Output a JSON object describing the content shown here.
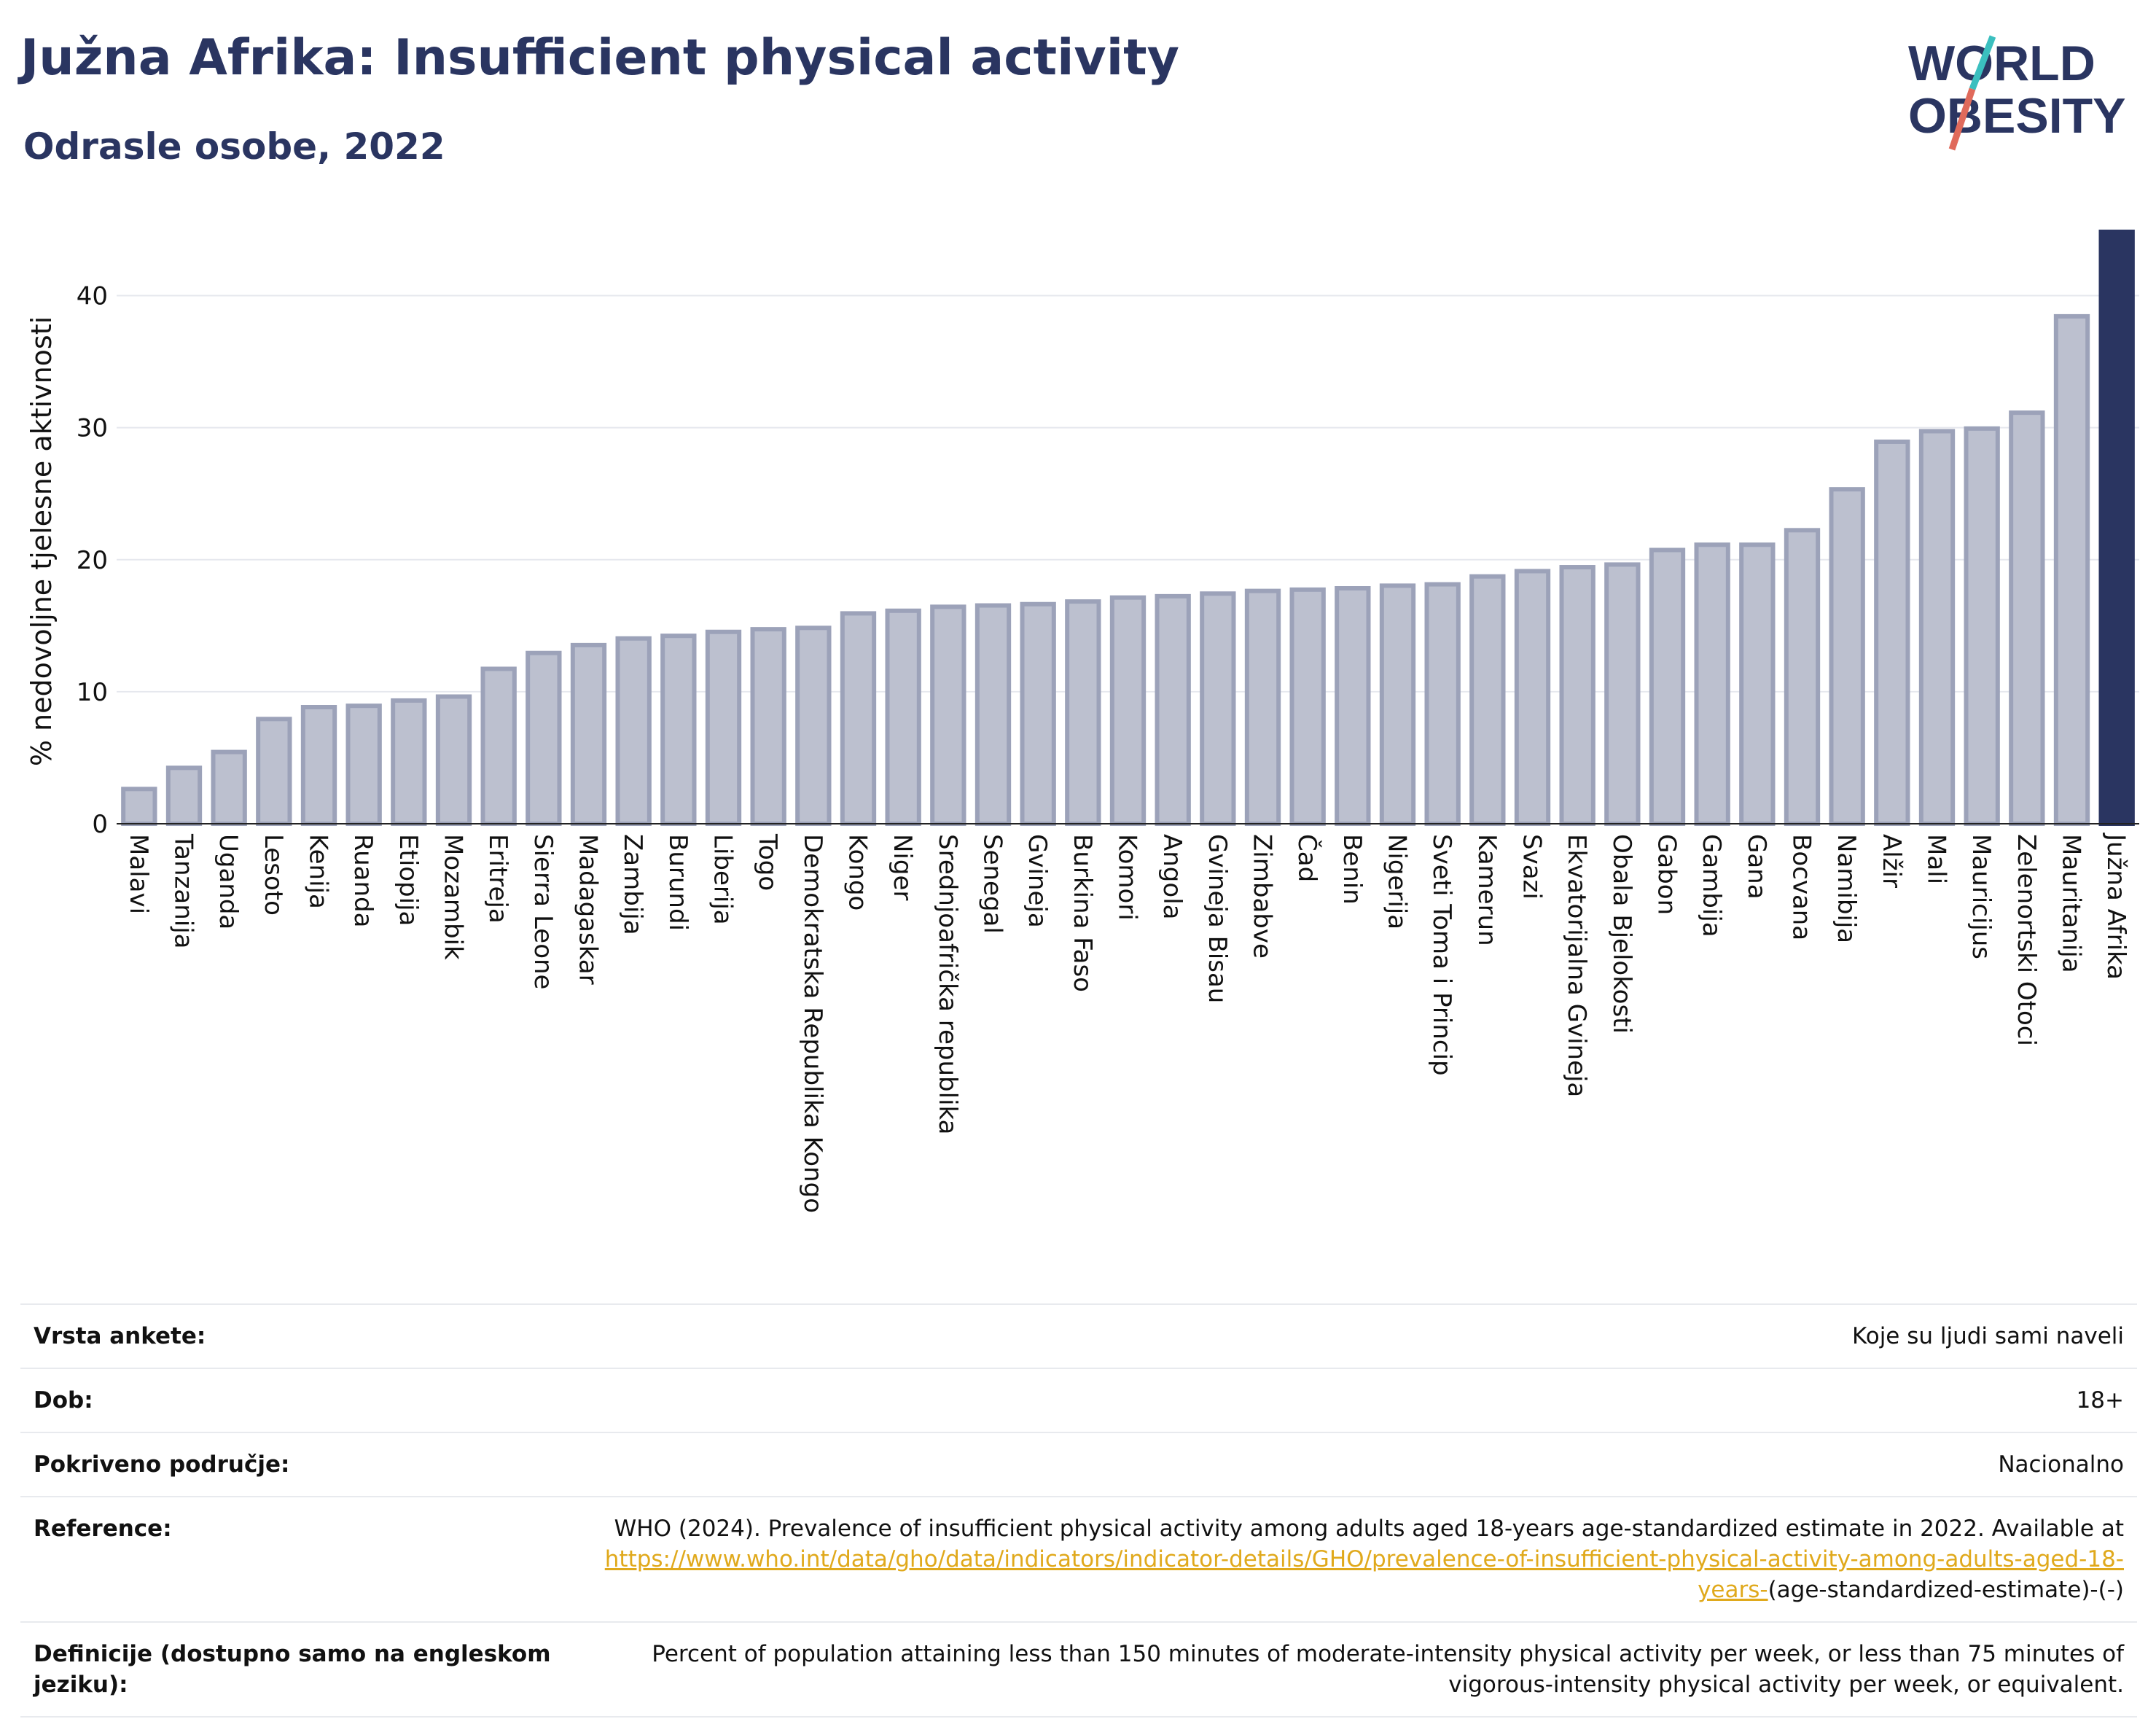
{
  "header": {
    "title": "Južna Afrika: Insufficient physical activity",
    "subtitle": "Odrasle osobe, 2022",
    "logo_line1": "WORLD",
    "logo_line2": "OBESITY"
  },
  "colors": {
    "bar_fill": "#bcc0cf",
    "bar_stroke": "#9ca2b9",
    "highlight": "#2a3561",
    "title": "#2a3561",
    "logo_teal": "#3bbfbf",
    "logo_coral": "#e06a5b",
    "link": "#e0a91c"
  },
  "chart_data": {
    "type": "bar",
    "title": "Južna Afrika: Insufficient physical activity",
    "subtitle": "Odrasle osobe, 2022",
    "xlabel": "",
    "ylabel": "% nedovoljne tjelesne aktivnosti",
    "ylim": [
      0,
      45
    ],
    "yticks": [
      0,
      10,
      20,
      30,
      40
    ],
    "grid": true,
    "highlight": "Južna Afrika",
    "categories": [
      "Malavi",
      "Tanzanija",
      "Uganda",
      "Lesoto",
      "Kenija",
      "Ruanda",
      "Etiopija",
      "Mozambik",
      "Eritreja",
      "Sierra Leone",
      "Madagaskar",
      "Zambija",
      "Burundi",
      "Liberija",
      "Togo",
      "Demokratska Republika Kongo",
      "Kongo",
      "Niger",
      "Srednjoafrička republika",
      "Senegal",
      "Gvineja",
      "Burkina Faso",
      "Komori",
      "Angola",
      "Gvineja Bisau",
      "Zimbabve",
      "Čad",
      "Benin",
      "Nigerija",
      "Sveti Toma i Princip",
      "Kamerun",
      "Svazi",
      "Ekvatorijalna Gvineja",
      "Obala Bjelokosti",
      "Gabon",
      "Gambija",
      "Gana",
      "Bocvana",
      "Namibija",
      "Alžir",
      "Mali",
      "Mauricijus",
      "Zelenortski Otoci",
      "Mauritanija",
      "Južna Afrika"
    ],
    "values": [
      2.8,
      4.4,
      5.6,
      8.1,
      9.0,
      9.1,
      9.5,
      9.8,
      11.9,
      13.1,
      13.7,
      14.2,
      14.4,
      14.7,
      14.9,
      15.0,
      16.1,
      16.3,
      16.6,
      16.7,
      16.8,
      17.0,
      17.3,
      17.4,
      17.6,
      17.8,
      17.9,
      18.0,
      18.2,
      18.3,
      18.9,
      19.3,
      19.6,
      19.8,
      20.9,
      21.3,
      21.3,
      22.4,
      25.5,
      29.1,
      29.9,
      30.1,
      31.3,
      38.6,
      45.0
    ]
  },
  "meta": {
    "rows": [
      {
        "label": "Vrsta ankete:",
        "value": "Koje su ljudi sami naveli"
      },
      {
        "label": "Dob:",
        "value": "18+"
      },
      {
        "label": "Pokriveno područje:",
        "value": "Nacionalno"
      }
    ],
    "reference": {
      "label": "Reference:",
      "text": "WHO (2024). Prevalence of insufficient physical activity among adults aged 18-years age-standardized estimate in 2022. Available at",
      "link": "https://www.who.int/data/gho/data/indicators/indicator-details/GHO/prevalence-of-insufficient-physical-activity-among-adults-aged-18-years-",
      "suffix": "(age-standardized-estimate)-(-)"
    },
    "definition": {
      "label": "Definicije (dostupno samo na engleskom jeziku):",
      "value": "Percent of population attaining less than 150 minutes of moderate-intensity physical activity per week, or less than 75 minutes of vigorous-intensity physical activity per week, or equivalent."
    }
  }
}
